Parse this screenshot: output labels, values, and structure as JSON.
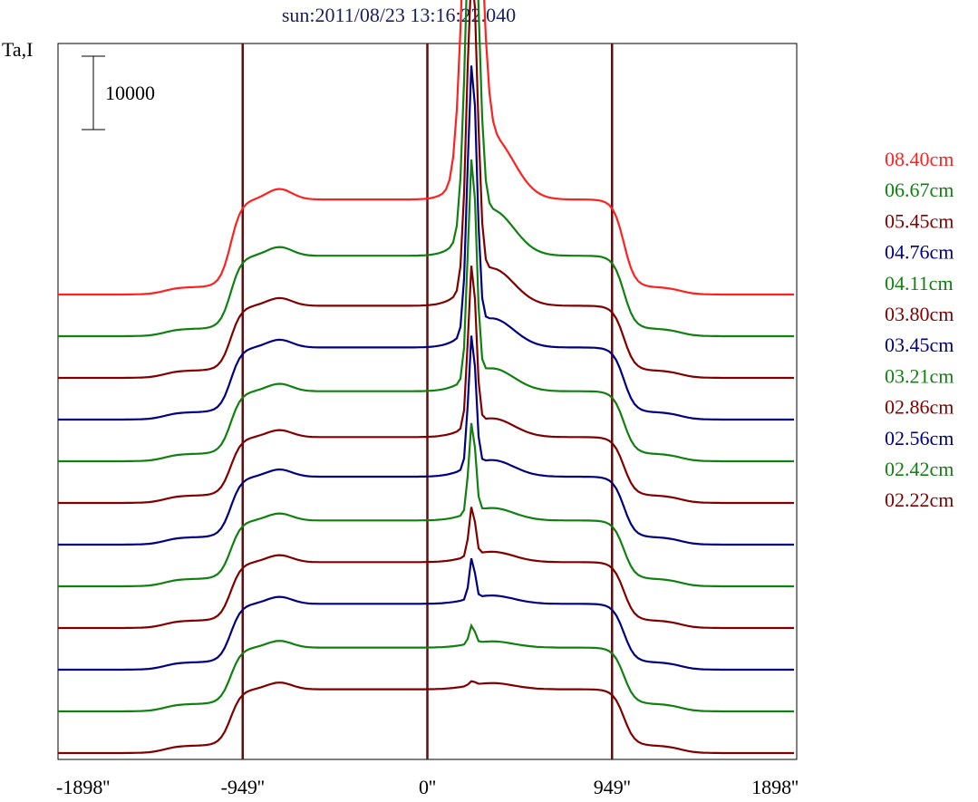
{
  "chart_data": {
    "type": "line",
    "title": "sun:2011/08/23 13:16:22.040",
    "ylabel": "Ta,I",
    "scale_bar_label": "10000",
    "x_ticks": [
      "-1898''",
      "-949''",
      "0''",
      "949''",
      "1898''"
    ],
    "x_range": [
      -1898,
      1898
    ],
    "limb_lines_x": [
      -949,
      0,
      949
    ],
    "grid": false,
    "legend_position": "right",
    "series": [
      {
        "name": "08.40cm",
        "color": "#ff2020",
        "baseline": 11,
        "peak": 9.6,
        "limb": 2.1,
        "peak_width": 60,
        "shoulder": 1.5
      },
      {
        "name": "06.67cm",
        "color": "#108010",
        "baseline": 10,
        "peak": 8.6,
        "limb": 1.75,
        "peak_width": 45,
        "shoulder": 1.1
      },
      {
        "name": "05.45cm",
        "color": "#800000",
        "baseline": 9,
        "peak": 7.5,
        "limb": 1.55,
        "peak_width": 38,
        "shoulder": 0.9
      },
      {
        "name": "04.76cm",
        "color": "#000080",
        "baseline": 8,
        "peak": 6.4,
        "limb": 1.55,
        "peak_width": 33,
        "shoulder": 0.7
      },
      {
        "name": "04.11cm",
        "color": "#108010",
        "baseline": 7,
        "peak": 5.3,
        "limb": 1.5,
        "peak_width": 30,
        "shoulder": 0.55
      },
      {
        "name": "03.80cm",
        "color": "#800000",
        "baseline": 6,
        "peak": 3.9,
        "limb": 1.4,
        "peak_width": 28,
        "shoulder": 0.45
      },
      {
        "name": "03.45cm",
        "color": "#000080",
        "baseline": 5,
        "peak": 3.2,
        "limb": 1.45,
        "peak_width": 26,
        "shoulder": 0.4
      },
      {
        "name": "03.21cm",
        "color": "#108010",
        "baseline": 4,
        "peak": 2.2,
        "limb": 1.4,
        "peak_width": 24,
        "shoulder": 0.3
      },
      {
        "name": "02.86cm",
        "color": "#800000",
        "baseline": 3,
        "peak": 1.2,
        "limb": 1.4,
        "peak_width": 22,
        "shoulder": 0.25
      },
      {
        "name": "02.56cm",
        "color": "#000080",
        "baseline": 2,
        "peak": 1.0,
        "limb": 1.4,
        "peak_width": 20,
        "shoulder": 0.2
      },
      {
        "name": "02.42cm",
        "color": "#108010",
        "baseline": 1,
        "peak": 0.45,
        "limb": 1.35,
        "peak_width": 20,
        "shoulder": 0.15
      },
      {
        "name": "02.22cm",
        "color": "#800000",
        "baseline": 0,
        "peak": 0.1,
        "limb": 1.35,
        "peak_width": 20,
        "shoulder": 0.15
      }
    ]
  }
}
